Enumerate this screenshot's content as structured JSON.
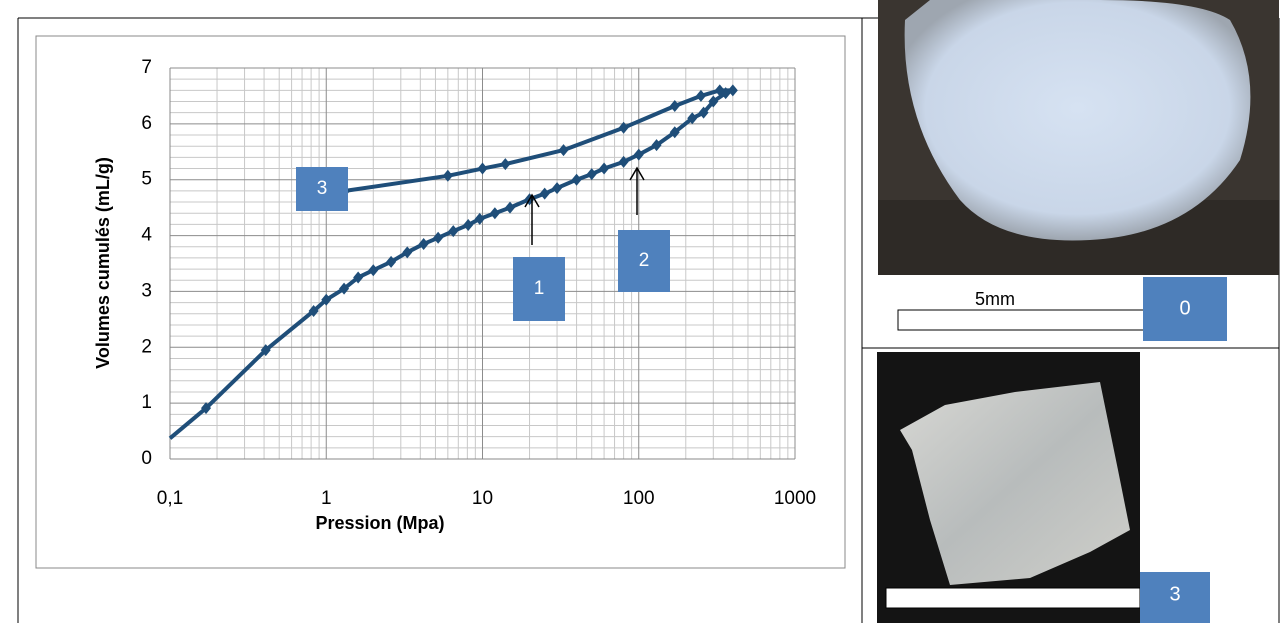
{
  "chart_data": {
    "type": "line",
    "x_label": "Pression (Mpa)",
    "y_label": "Volumes  cumulés  (mL/g)",
    "x": [
      0.17,
      0.41,
      0.83,
      1.0,
      1.3,
      1.6,
      2.0,
      2.6,
      3.3,
      4.2,
      5.2,
      6.5,
      8.1,
      9.6,
      12,
      15,
      20,
      25,
      30,
      40,
      50,
      60,
      80,
      100,
      130,
      170,
      220,
      260,
      300,
      360,
      400,
      330,
      250,
      170,
      80,
      33,
      14,
      10,
      6,
      1.32
    ],
    "values": [
      0.91,
      1.95,
      2.65,
      2.85,
      3.05,
      3.25,
      3.38,
      3.53,
      3.7,
      3.85,
      3.96,
      4.08,
      4.19,
      4.3,
      4.4,
      4.5,
      4.65,
      4.75,
      4.85,
      5.0,
      5.1,
      5.2,
      5.32,
      5.45,
      5.62,
      5.85,
      6.1,
      6.2,
      6.4,
      6.55,
      6.6,
      6.6,
      6.5,
      6.32,
      5.93,
      5.53,
      5.28,
      5.2,
      5.07,
      4.8
    ],
    "color": "#1f4e79",
    "xlog": true,
    "grid": true,
    "xlim": [
      0.1,
      1000
    ],
    "xticks": [
      {
        "value": 0.1,
        "label": "0,1"
      },
      1,
      10,
      100,
      1000
    ],
    "ylim": [
      0,
      7
    ],
    "yticks": [
      0,
      1,
      2,
      3,
      4,
      5,
      6,
      7
    ],
    "annotations": [
      {
        "text": "3"
      },
      {
        "text": "1"
      },
      {
        "text": "2"
      }
    ]
  },
  "photos": {
    "top": {
      "scale_label": "5mm",
      "tag": "0"
    },
    "bottom": {
      "tag": "3"
    }
  }
}
